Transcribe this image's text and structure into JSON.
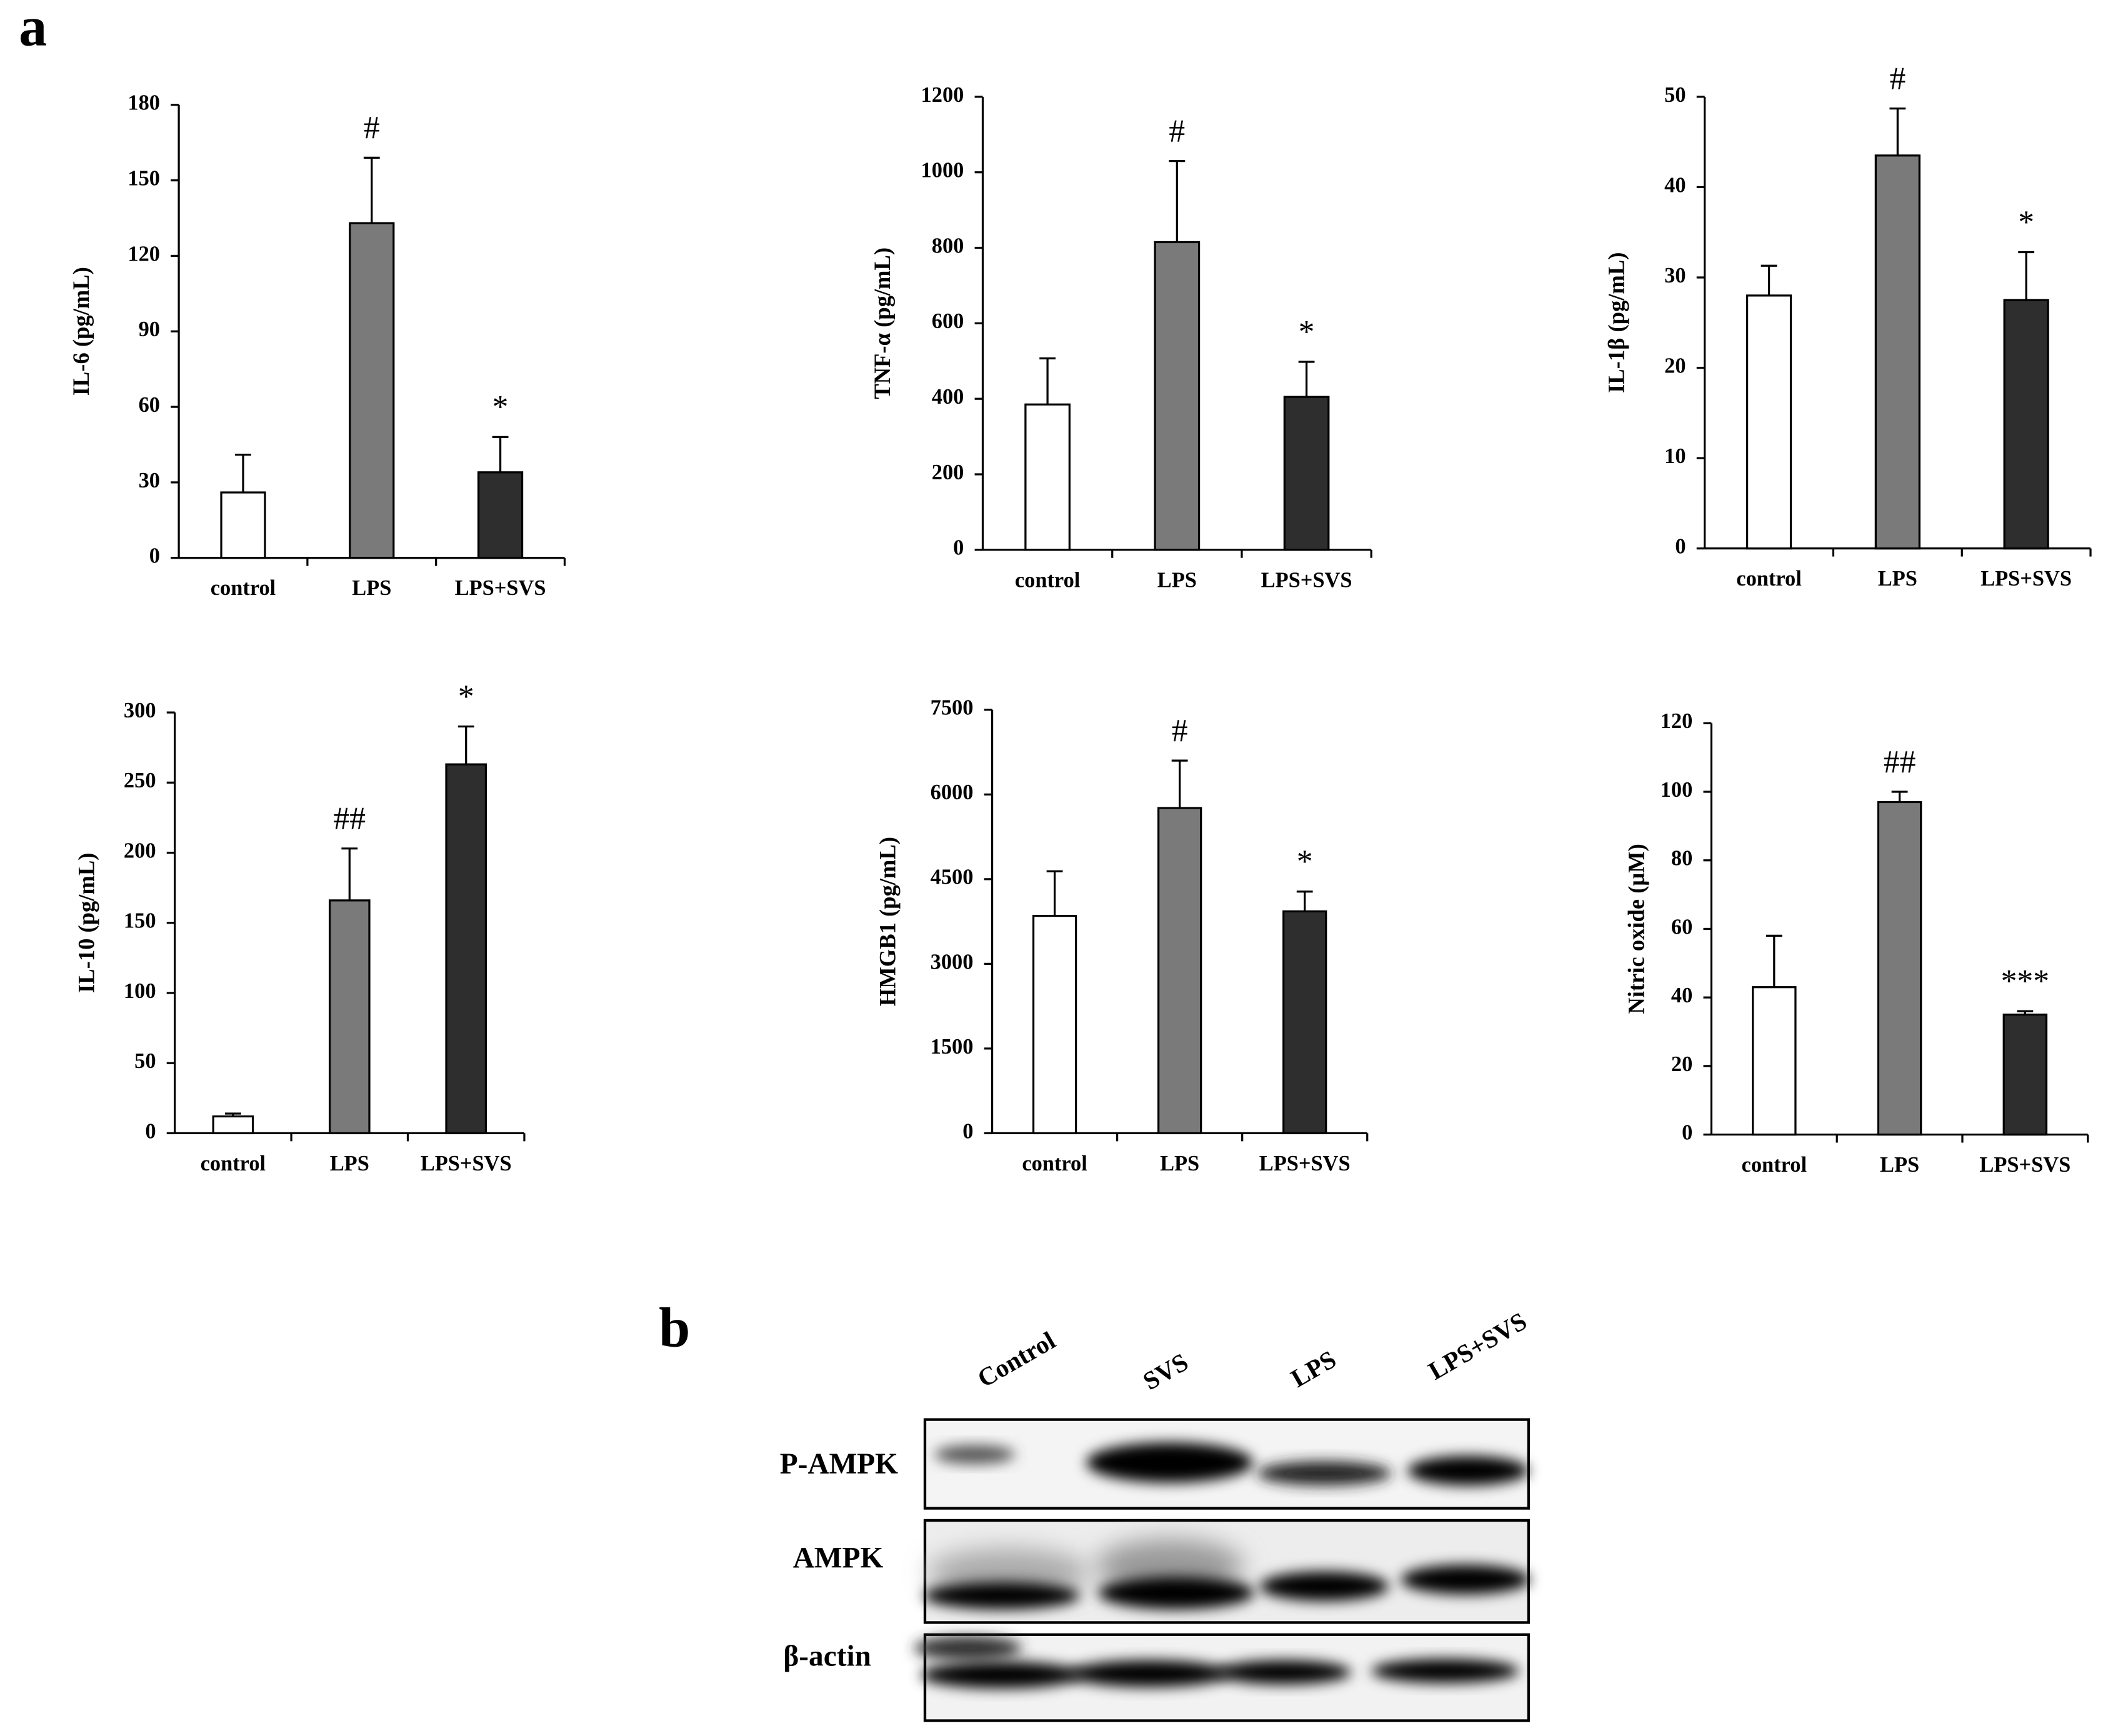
{
  "panel_labels": [
    "a",
    "b"
  ],
  "chart_data": [
    {
      "type": "bar",
      "ylabel": "IL-6 (pg/mL)",
      "categories": [
        "control",
        "LPS",
        "LPS+SVS"
      ],
      "values": [
        26,
        133,
        34
      ],
      "errors": [
        15,
        26,
        14
      ],
      "annotations": [
        null,
        "#",
        "*"
      ],
      "colors": [
        "#ffffff",
        "#7a7a7a",
        "#2e2e2e"
      ],
      "ylim": [
        0,
        180
      ],
      "yticks": [
        0,
        30,
        60,
        90,
        120,
        150,
        180
      ]
    },
    {
      "type": "bar",
      "ylabel": "TNF-α (pg/mL)",
      "categories": [
        "control",
        "LPS",
        "LPS+SVS"
      ],
      "values": [
        385,
        815,
        405
      ],
      "errors": [
        122,
        215,
        93
      ],
      "annotations": [
        null,
        "#",
        "*"
      ],
      "colors": [
        "#ffffff",
        "#7a7a7a",
        "#2e2e2e"
      ],
      "ylim": [
        0,
        1200
      ],
      "yticks": [
        0,
        200,
        400,
        600,
        800,
        1000,
        1200
      ]
    },
    {
      "type": "bar",
      "ylabel": "IL-1β (pg/mL)",
      "categories": [
        "control",
        "LPS",
        "LPS+SVS"
      ],
      "values": [
        28,
        43.5,
        27.5
      ],
      "errors": [
        3.3,
        5.2,
        5.3
      ],
      "annotations": [
        null,
        "#",
        "*"
      ],
      "colors": [
        "#ffffff",
        "#7a7a7a",
        "#2e2e2e"
      ],
      "ylim": [
        0,
        50
      ],
      "yticks": [
        0,
        10,
        20,
        30,
        40,
        50
      ]
    },
    {
      "type": "bar",
      "ylabel": "IL-10 (pg/mL)",
      "categories": [
        "control",
        "LPS",
        "LPS+SVS"
      ],
      "values": [
        12,
        166,
        263
      ],
      "errors": [
        2,
        37,
        27
      ],
      "annotations": [
        null,
        "##",
        "*"
      ],
      "colors": [
        "#ffffff",
        "#7a7a7a",
        "#2e2e2e"
      ],
      "ylim": [
        0,
        300
      ],
      "yticks": [
        0,
        50,
        100,
        150,
        200,
        250,
        300
      ]
    },
    {
      "type": "bar",
      "ylabel": "HMGB1 (pg/mL)",
      "categories": [
        "control",
        "LPS",
        "LPS+SVS"
      ],
      "values": [
        3850,
        5760,
        3930
      ],
      "errors": [
        790,
        840,
        350
      ],
      "annotations": [
        null,
        "#",
        "*"
      ],
      "colors": [
        "#ffffff",
        "#7a7a7a",
        "#2e2e2e"
      ],
      "ylim": [
        0,
        7500
      ],
      "yticks": [
        0,
        1500,
        3000,
        4500,
        6000,
        7500
      ]
    },
    {
      "type": "bar",
      "ylabel": "Nitric oxide (μM)",
      "categories": [
        "control",
        "LPS",
        "LPS+SVS"
      ],
      "values": [
        43,
        97,
        35
      ],
      "errors": [
        15,
        3,
        1
      ],
      "annotations": [
        null,
        "##",
        "***"
      ],
      "colors": [
        "#ffffff",
        "#7a7a7a",
        "#2e2e2e"
      ],
      "ylim": [
        0,
        120
      ],
      "yticks": [
        0,
        20,
        40,
        60,
        80,
        100,
        120
      ]
    }
  ],
  "blot": {
    "lanes": [
      "Control",
      "SVS",
      "LPS",
      "LPS+SVS"
    ],
    "rows": [
      "P-AMPK",
      "AMPK",
      "β-actin"
    ]
  }
}
